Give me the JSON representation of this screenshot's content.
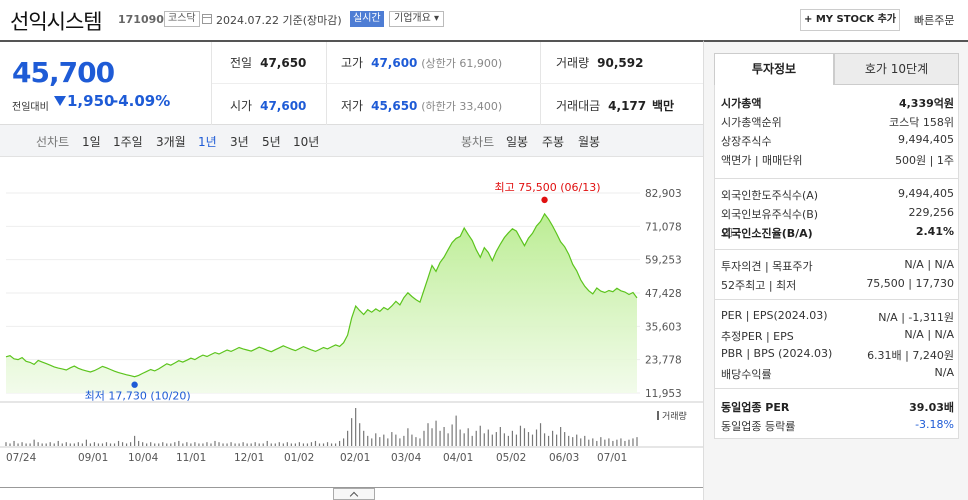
{
  "header": {
    "company_name": "선익시스템",
    "code": "171090",
    "market": "코스닥",
    "date_text": "2024.07.22  기준(장마감)",
    "realtime_label": "실시간",
    "company_info_label": "기업개요 ▾",
    "mystock_label": "+ MY STOCK 추가",
    "quick_order_label": "빠른주문"
  },
  "price": {
    "current": "45,700",
    "change_label": "전일대비",
    "change": "1,950",
    "change_pct": "-4.09%",
    "prev_close_label": "전일",
    "prev_close": "47,650",
    "high_label": "고가",
    "high": "47,600",
    "upper_limit": "(상한가 61,900)",
    "volume_label": "거래량",
    "volume": "90,592",
    "open_label": "시가",
    "open": "47,600",
    "low_label": "저가",
    "low": "45,650",
    "lower_limit": "(하한가 33,400)",
    "value_label": "거래대금",
    "value": "4,177",
    "value_unit": "백만"
  },
  "toolbar": {
    "line_chart_label": "선차트",
    "periods": [
      "1일",
      "1주일",
      "3개월",
      "1년",
      "3년",
      "5년",
      "10년"
    ],
    "selected_period": "1년",
    "candle_chart_label": "봉차트",
    "candle_periods": [
      "일봉",
      "주봉",
      "월봉"
    ]
  },
  "chart_data": {
    "type": "area",
    "y_ticks": [
      "82,903",
      "71,078",
      "59,253",
      "47,428",
      "35,603",
      "23,778",
      "11,953"
    ],
    "ylim": [
      11953,
      82903
    ],
    "x_ticks": [
      "07/24",
      "09/01",
      "10/04",
      "11/01",
      "12/01",
      "01/02",
      "02/01",
      "03/04",
      "04/01",
      "05/02",
      "06/03",
      "07/01"
    ],
    "high_annotation": "최고 75,500 (06/13)",
    "low_annotation": "최저 17,730 (10/20)",
    "volume_label": "거래량",
    "series": [
      {
        "values": [
          24800,
          25200,
          24100,
          23800,
          24500,
          23200,
          22800,
          22100,
          23500,
          22900,
          22400,
          21800,
          21200,
          20800,
          20500,
          20100,
          20900,
          21500,
          20700,
          20200,
          19800,
          19400,
          19900,
          20600,
          21400,
          20900,
          20300,
          19700,
          19200,
          18800,
          18400,
          18100,
          17730,
          18200,
          18900,
          19600,
          20300,
          19800,
          20500,
          21400,
          22300,
          21800,
          22600,
          23400,
          22900,
          23600,
          24300,
          23800,
          24700,
          25400,
          24900,
          25600,
          26300,
          25800,
          26500,
          27200,
          26700,
          27400,
          28100,
          27600,
          27200,
          26800,
          27500,
          28200,
          27700,
          27100,
          26600,
          27300,
          28000,
          28700,
          28100,
          27500,
          27000,
          27700,
          28400,
          27800,
          27200,
          26700,
          27400,
          28100,
          27600,
          28300,
          29000,
          28500,
          29800,
          32500,
          38500,
          42800,
          41200,
          39800,
          41500,
          40600,
          41800,
          40900,
          42300,
          41500,
          42800,
          44500,
          43200,
          45800,
          47500,
          46200,
          45100,
          44200,
          48500,
          52800,
          57200,
          55100,
          58300,
          60200,
          62800,
          65300,
          66800,
          67500,
          70500,
          68200,
          66100,
          62800,
          60100,
          63500,
          61800,
          58900,
          62200,
          64800,
          67100,
          68800,
          70200,
          69400,
          66800,
          64200,
          66900,
          68600,
          71200,
          72800,
          75500,
          73600,
          71200,
          68500,
          65600,
          63800,
          61200,
          57600,
          55300,
          52100,
          49800,
          48200,
          47100,
          49200,
          48100,
          47600,
          48300,
          47900,
          49100,
          48200,
          47800,
          46900,
          47600,
          45700
        ],
        "volume": [
          3,
          2,
          4,
          2,
          3,
          2,
          2,
          5,
          3,
          2,
          2,
          3,
          2,
          4,
          2,
          3,
          2,
          2,
          3,
          2,
          5,
          2,
          3,
          2,
          2,
          3,
          2,
          2,
          4,
          3,
          2,
          3,
          8,
          4,
          3,
          2,
          3,
          2,
          2,
          3,
          2,
          2,
          3,
          4,
          2,
          3,
          2,
          3,
          2,
          2,
          3,
          2,
          4,
          3,
          2,
          2,
          3,
          2,
          2,
          3,
          2,
          2,
          3,
          2,
          2,
          4,
          2,
          2,
          3,
          2,
          3,
          2,
          2,
          3,
          2,
          2,
          3,
          4,
          2,
          2,
          3,
          2,
          2,
          4,
          6,
          12,
          22,
          30,
          18,
          12,
          8,
          6,
          10,
          7,
          9,
          6,
          11,
          9,
          6,
          8,
          14,
          9,
          7,
          6,
          12,
          18,
          14,
          20,
          12,
          15,
          10,
          17,
          24,
          13,
          10,
          14,
          8,
          12,
          16,
          10,
          13,
          9,
          11,
          15,
          10,
          8,
          12,
          9,
          16,
          14,
          11,
          9,
          13,
          18,
          10,
          8,
          12,
          9,
          15,
          11,
          8,
          7,
          9,
          6,
          8,
          5,
          6,
          4,
          7,
          5,
          6,
          4,
          5,
          6,
          4,
          5,
          6,
          7
        ]
      }
    ]
  },
  "right_panel": {
    "tabs": [
      "투자정보",
      "호가 10단계"
    ],
    "rows1": [
      {
        "label": "시가총액",
        "value": "4,339억원",
        "bold": true
      },
      {
        "label": "시가총액순위",
        "value": "코스닥 158위"
      },
      {
        "label": "상장주식수",
        "value": "9,494,405"
      },
      {
        "label": "액면가 | 매매단위",
        "value": "500원 | 1주"
      }
    ],
    "rows2": [
      {
        "label": "외국인한도주식수(A)",
        "value": "9,494,405"
      },
      {
        "label": "외국인보유주식수(B)",
        "value": "229,256"
      },
      {
        "label": "외국인소진율(B/A)",
        "value": "2.41%",
        "bold": true
      }
    ],
    "rows3": [
      {
        "label": "투자의견 | 목표주가",
        "value": "N/A | N/A"
      },
      {
        "label": "52주최고 | 최저",
        "value": "75,500 | 17,730"
      }
    ],
    "rows4": [
      {
        "label": "PER | EPS(2024.03)",
        "value": "N/A | -1,311원"
      },
      {
        "label": "추정PER | EPS",
        "value": "N/A | N/A"
      },
      {
        "label": "PBR | BPS (2024.03)",
        "value": "6.31배 | 7,240원"
      },
      {
        "label": "배당수익률",
        "value": "N/A"
      }
    ],
    "rows5": [
      {
        "label": "동일업종 PER",
        "value": "39.03배",
        "bold": true
      },
      {
        "label": "동일업종 등락률",
        "value": "-3.18%"
      }
    ]
  }
}
